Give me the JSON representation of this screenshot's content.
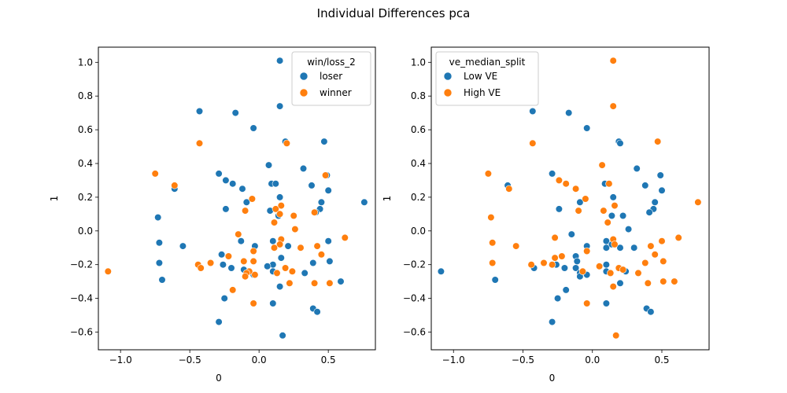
{
  "figure": {
    "title": "Individual Differences pca"
  },
  "chart_data": [
    {
      "type": "scatter",
      "title": "",
      "xlabel": "0",
      "ylabel": "1",
      "xlim": [
        -1.16,
        0.84
      ],
      "ylim": [
        -0.705,
        1.09
      ],
      "xticks": [
        -1.0,
        -0.5,
        0.0,
        0.5
      ],
      "xtick_labels": [
        "−1.0",
        "−0.5",
        "0.0",
        "0.5"
      ],
      "yticks": [
        -0.6,
        -0.4,
        -0.2,
        0.0,
        0.2,
        0.4,
        0.6,
        0.8,
        1.0
      ],
      "ytick_labels": [
        "−0.6",
        "−0.4",
        "−0.2",
        "0.0",
        "0.2",
        "0.4",
        "0.6",
        "0.8",
        "1.0"
      ],
      "grid": false,
      "legend": {
        "title": "win/loss_2",
        "position": "top-right"
      },
      "series": [
        {
          "name": "loser",
          "color": "#1f77b4",
          "points": [
            [
              0.15,
              1.01
            ],
            [
              0.15,
              0.74
            ],
            [
              -0.43,
              0.71
            ],
            [
              -0.17,
              0.7
            ],
            [
              -0.04,
              0.61
            ],
            [
              0.19,
              0.53
            ],
            [
              0.47,
              0.53
            ],
            [
              0.07,
              0.39
            ],
            [
              0.32,
              0.37
            ],
            [
              0.49,
              0.33
            ],
            [
              -0.29,
              0.34
            ],
            [
              -0.24,
              0.3
            ],
            [
              0.09,
              0.28
            ],
            [
              0.12,
              0.28
            ],
            [
              0.38,
              0.27
            ],
            [
              -0.19,
              0.28
            ],
            [
              -0.12,
              0.25
            ],
            [
              -0.61,
              0.25
            ],
            [
              0.5,
              0.24
            ],
            [
              0.15,
              0.2
            ],
            [
              -0.09,
              0.17
            ],
            [
              0.45,
              0.17
            ],
            [
              0.76,
              0.17
            ],
            [
              0.44,
              0.13
            ],
            [
              -0.24,
              0.13
            ],
            [
              0.08,
              0.12
            ],
            [
              0.41,
              0.11
            ],
            [
              0.14,
              0.09
            ],
            [
              -0.73,
              0.08
            ],
            [
              -0.72,
              -0.07
            ],
            [
              -0.55,
              -0.09
            ],
            [
              0.1,
              -0.06
            ],
            [
              0.21,
              -0.09
            ],
            [
              0.5,
              -0.06
            ],
            [
              -0.03,
              -0.09
            ],
            [
              -0.13,
              -0.06
            ],
            [
              -0.27,
              -0.14
            ],
            [
              -0.26,
              -0.2
            ],
            [
              -0.72,
              -0.19
            ],
            [
              0.1,
              -0.2
            ],
            [
              0.16,
              -0.16
            ],
            [
              0.39,
              -0.19
            ],
            [
              0.51,
              -0.18
            ],
            [
              -0.04,
              -0.26
            ],
            [
              0.06,
              -0.21
            ],
            [
              0.1,
              -0.24
            ],
            [
              -0.2,
              -0.22
            ],
            [
              0.33,
              -0.25
            ],
            [
              -0.11,
              -0.23
            ],
            [
              -0.7,
              -0.29
            ],
            [
              0.59,
              -0.3
            ],
            [
              0.15,
              -0.33
            ],
            [
              -0.25,
              -0.4
            ],
            [
              0.1,
              -0.43
            ],
            [
              0.39,
              -0.46
            ],
            [
              0.42,
              -0.48
            ],
            [
              -0.29,
              -0.54
            ],
            [
              0.17,
              -0.62
            ]
          ]
        },
        {
          "name": "winner",
          "color": "#ff7f0e",
          "points": [
            [
              -0.43,
              0.52
            ],
            [
              0.2,
              0.52
            ],
            [
              -0.75,
              0.34
            ],
            [
              0.48,
              0.33
            ],
            [
              -0.61,
              0.27
            ],
            [
              -0.05,
              0.19
            ],
            [
              0.16,
              0.15
            ],
            [
              0.12,
              0.13
            ],
            [
              -0.1,
              0.12
            ],
            [
              0.15,
              0.1
            ],
            [
              0.25,
              0.09
            ],
            [
              0.4,
              0.11
            ],
            [
              0.11,
              0.05
            ],
            [
              0.26,
              0.01
            ],
            [
              -0.15,
              -0.02
            ],
            [
              -0.15,
              -0.02
            ],
            [
              0.62,
              -0.04
            ],
            [
              0.16,
              -0.05
            ],
            [
              0.15,
              -0.08
            ],
            [
              0.3,
              -0.1
            ],
            [
              0.42,
              -0.09
            ],
            [
              0.11,
              -0.1
            ],
            [
              -0.04,
              -0.12
            ],
            [
              -0.11,
              -0.18
            ],
            [
              -0.22,
              -0.15
            ],
            [
              0.45,
              -0.14
            ],
            [
              -0.35,
              -0.19
            ],
            [
              -0.44,
              -0.2
            ],
            [
              -0.42,
              -0.22
            ],
            [
              -0.04,
              -0.18
            ],
            [
              0.19,
              -0.22
            ],
            [
              0.24,
              -0.24
            ],
            [
              0.13,
              -0.25
            ],
            [
              -0.07,
              -0.24
            ],
            [
              -0.09,
              -0.25
            ],
            [
              -0.1,
              -0.27
            ],
            [
              -0.03,
              -0.26
            ],
            [
              0.22,
              -0.31
            ],
            [
              0.4,
              -0.31
            ],
            [
              0.51,
              -0.31
            ],
            [
              -0.19,
              -0.35
            ],
            [
              -0.04,
              -0.43
            ],
            [
              -1.09,
              -0.24
            ]
          ]
        }
      ]
    },
    {
      "type": "scatter",
      "title": "",
      "xlabel": "0",
      "ylabel": "1",
      "xlim": [
        -1.16,
        0.84
      ],
      "ylim": [
        -0.705,
        1.09
      ],
      "xticks": [
        -1.0,
        -0.5,
        0.0,
        0.5
      ],
      "xtick_labels": [
        "−1.0",
        "−0.5",
        "0.0",
        "0.5"
      ],
      "yticks": [
        -0.6,
        -0.4,
        -0.2,
        0.0,
        0.2,
        0.4,
        0.6,
        0.8,
        1.0
      ],
      "ytick_labels": [
        "−0.6",
        "−0.4",
        "−0.2",
        "0.0",
        "0.2",
        "0.4",
        "0.6",
        "0.8",
        "1.0"
      ],
      "grid": false,
      "legend": {
        "title": "ve_median_split",
        "position": "top-left"
      },
      "series": [
        {
          "name": "Low VE",
          "color": "#1f77b4",
          "points": [
            [
              -0.43,
              0.71
            ],
            [
              -0.17,
              0.7
            ],
            [
              -0.04,
              0.61
            ],
            [
              0.19,
              0.53
            ],
            [
              0.2,
              0.52
            ],
            [
              0.32,
              0.37
            ],
            [
              0.49,
              0.33
            ],
            [
              -0.29,
              0.34
            ],
            [
              0.09,
              0.28
            ],
            [
              0.38,
              0.27
            ],
            [
              -0.61,
              0.27
            ],
            [
              0.5,
              0.24
            ],
            [
              0.15,
              0.2
            ],
            [
              -0.09,
              0.17
            ],
            [
              0.45,
              0.17
            ],
            [
              0.44,
              0.13
            ],
            [
              -0.24,
              0.13
            ],
            [
              0.41,
              0.11
            ],
            [
              0.14,
              0.09
            ],
            [
              0.22,
              0.09
            ],
            [
              0.26,
              0.01
            ],
            [
              -0.15,
              -0.02
            ],
            [
              0.1,
              -0.06
            ],
            [
              0.1,
              -0.1
            ],
            [
              0.14,
              -0.08
            ],
            [
              0.2,
              -0.1
            ],
            [
              0.3,
              -0.1
            ],
            [
              -0.04,
              -0.09
            ],
            [
              -0.12,
              -0.15
            ],
            [
              -0.11,
              -0.18
            ],
            [
              -0.12,
              -0.22
            ],
            [
              -0.09,
              -0.25
            ],
            [
              -0.09,
              -0.27
            ],
            [
              -0.04,
              -0.26
            ],
            [
              -0.26,
              -0.2
            ],
            [
              -0.2,
              -0.22
            ],
            [
              -0.42,
              -0.22
            ],
            [
              0.1,
              -0.2
            ],
            [
              0.1,
              -0.24
            ],
            [
              0.24,
              -0.24
            ],
            [
              0.2,
              -0.31
            ],
            [
              0.39,
              -0.46
            ],
            [
              0.42,
              -0.48
            ],
            [
              0.1,
              -0.43
            ],
            [
              -0.19,
              -0.35
            ],
            [
              -0.25,
              -0.4
            ],
            [
              -0.29,
              -0.54
            ],
            [
              -1.09,
              -0.24
            ],
            [
              -0.7,
              -0.29
            ]
          ]
        },
        {
          "name": "High VE",
          "color": "#ff7f0e",
          "points": [
            [
              0.15,
              1.01
            ],
            [
              0.15,
              0.74
            ],
            [
              -0.43,
              0.52
            ],
            [
              0.47,
              0.53
            ],
            [
              0.07,
              0.39
            ],
            [
              -0.24,
              0.3
            ],
            [
              -0.19,
              0.28
            ],
            [
              0.12,
              0.28
            ],
            [
              -0.12,
              0.25
            ],
            [
              -0.6,
              0.25
            ],
            [
              -0.05,
              0.19
            ],
            [
              -0.75,
              0.34
            ],
            [
              0.76,
              0.17
            ],
            [
              0.16,
              0.15
            ],
            [
              0.08,
              0.12
            ],
            [
              -0.1,
              0.12
            ],
            [
              0.11,
              0.05
            ],
            [
              -0.73,
              0.08
            ],
            [
              -0.72,
              -0.07
            ],
            [
              -0.55,
              -0.09
            ],
            [
              0.62,
              -0.04
            ],
            [
              0.5,
              -0.06
            ],
            [
              0.42,
              -0.09
            ],
            [
              0.15,
              -0.05
            ],
            [
              0.16,
              -0.08
            ],
            [
              -0.27,
              -0.04
            ],
            [
              -0.04,
              -0.12
            ],
            [
              -0.22,
              -0.15
            ],
            [
              -0.27,
              -0.16
            ],
            [
              0.45,
              -0.14
            ],
            [
              0.38,
              -0.19
            ],
            [
              0.51,
              -0.18
            ],
            [
              -0.72,
              -0.19
            ],
            [
              -0.44,
              -0.2
            ],
            [
              0.19,
              -0.22
            ],
            [
              0.13,
              -0.25
            ],
            [
              0.33,
              -0.25
            ],
            [
              0.4,
              -0.31
            ],
            [
              0.51,
              -0.3
            ],
            [
              0.59,
              -0.3
            ],
            [
              0.15,
              -0.33
            ],
            [
              -0.04,
              -0.43
            ],
            [
              0.17,
              -0.62
            ],
            [
              -0.29,
              -0.2
            ],
            [
              -0.35,
              -0.19
            ],
            [
              -0.07,
              -0.24
            ],
            [
              0.05,
              -0.21
            ],
            [
              0.22,
              -0.23
            ]
          ]
        }
      ]
    }
  ]
}
